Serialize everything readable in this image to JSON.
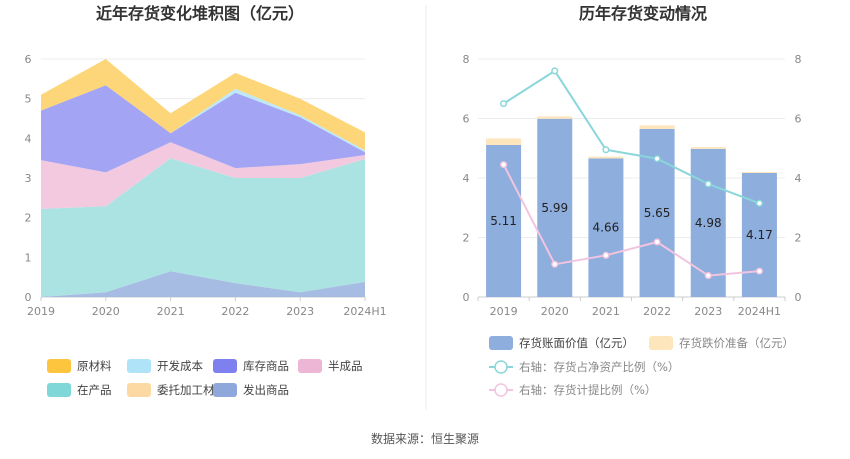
{
  "source": "数据来源：恒生聚源",
  "chart_data": [
    {
      "type": "area",
      "stacked": true,
      "title": "近年存货变化堆积图（亿元）",
      "x": [
        "2019",
        "2020",
        "2021",
        "2022",
        "2023",
        "2024H1"
      ],
      "ylim": [
        0,
        6
      ],
      "yticks": [
        "0",
        "1",
        "2",
        "3",
        "4",
        "5",
        "6"
      ],
      "grid": true,
      "legend_position": "bottom",
      "series": [
        {
          "name": "发出商品",
          "color": "#9fb6e0",
          "values": [
            0.0,
            0.12,
            0.65,
            0.35,
            0.12,
            0.38
          ]
        },
        {
          "name": "在产品",
          "color": "#a4e1e1",
          "values": [
            2.22,
            2.17,
            2.85,
            2.65,
            2.88,
            3.1
          ]
        },
        {
          "name": "半成品",
          "color": "#f2c4dc",
          "values": [
            1.23,
            0.85,
            0.4,
            0.25,
            0.35,
            0.1
          ]
        },
        {
          "name": "库存商品",
          "color": "#9b9cf2",
          "values": [
            1.25,
            2.2,
            0.23,
            1.9,
            1.18,
            0.07
          ]
        },
        {
          "name": "开发成本",
          "color": "#b9e6f7",
          "values": [
            0.0,
            0.0,
            0.0,
            0.1,
            0.05,
            0.05
          ]
        },
        {
          "name": "委托加工材料",
          "color": "#fbe0a6",
          "values": [
            0.0,
            0.0,
            0.0,
            0.0,
            0.0,
            0.0
          ]
        },
        {
          "name": "原材料",
          "color": "#fdd36e",
          "values": [
            0.4,
            0.66,
            0.5,
            0.4,
            0.42,
            0.45
          ]
        }
      ],
      "legend": [
        {
          "name": "原材料",
          "color": "#fcc53d"
        },
        {
          "name": "开发成本",
          "color": "#aee3f8"
        },
        {
          "name": "库存商品",
          "color": "#7f80f0"
        },
        {
          "name": "半成品",
          "color": "#ecb6d4"
        },
        {
          "name": "在产品",
          "color": "#7fd7d7"
        },
        {
          "name": "委托加工材料",
          "color": "#fcd9a3"
        },
        {
          "name": "发出商品",
          "color": "#8fa8dc"
        }
      ]
    },
    {
      "type": "bar",
      "stacked": true,
      "title": "历年存货变动情况",
      "categories": [
        "2019",
        "2020",
        "2021",
        "2022",
        "2023",
        "2024H1"
      ],
      "ylim": [
        0,
        8
      ],
      "yticks": [
        "0",
        "2",
        "4",
        "6",
        "8"
      ],
      "y2lim": [
        0,
        8
      ],
      "y2ticks": [
        "0",
        "2",
        "4",
        "6",
        "8"
      ],
      "grid": true,
      "legend_position": "bottom",
      "series": [
        {
          "name": "存货账面价值（亿元）",
          "color": "#8eaedd",
          "values": [
            5.11,
            5.99,
            4.66,
            5.65,
            4.98,
            4.17
          ],
          "data_labels": [
            "5.11",
            "5.99",
            "4.66",
            "5.65",
            "4.98",
            "4.17"
          ]
        },
        {
          "name": "存货跌价准备（亿元）",
          "color": "#fde5bc",
          "values": [
            0.22,
            0.08,
            0.06,
            0.12,
            0.06,
            0.03
          ]
        }
      ],
      "lines": [
        {
          "name": "右轴：存货占净资产比例（%）",
          "color": "#8ad6da",
          "axis": "right",
          "values": [
            6.5,
            7.6,
            4.95,
            4.65,
            3.8,
            3.15
          ]
        },
        {
          "name": "右轴：存货计提比例（%）",
          "color": "#f2c4df",
          "axis": "right",
          "values": [
            4.45,
            1.1,
            1.4,
            1.85,
            0.72,
            0.87
          ]
        }
      ]
    }
  ]
}
